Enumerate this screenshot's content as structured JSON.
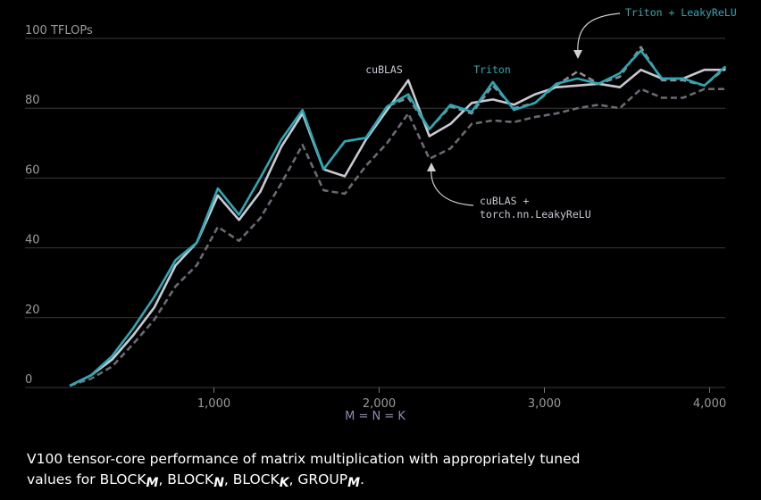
{
  "chart_data": {
    "type": "line",
    "xlabel": "M = N = K",
    "ylabel": "100 TFLOPs",
    "xlim": [
      0,
      4100
    ],
    "ylim": [
      0,
      100
    ],
    "x_ticks": [
      1000,
      2000,
      3000,
      4000
    ],
    "x_tick_labels": [
      "1,000",
      "2,000",
      "3,000",
      "4,000"
    ],
    "y_ticks": [
      0,
      20,
      40,
      60,
      80,
      100
    ],
    "y_tick_labels": [
      "0",
      "20",
      "40",
      "60",
      "80",
      "100 TFLOPs"
    ],
    "grid": true,
    "x": [
      128,
      256,
      384,
      512,
      640,
      768,
      896,
      1024,
      1152,
      1280,
      1408,
      1536,
      1664,
      1792,
      1920,
      2048,
      2176,
      2304,
      2432,
      2560,
      2688,
      2816,
      2944,
      3072,
      3200,
      3328,
      3456,
      3584,
      3712,
      3840,
      3968,
      4096
    ],
    "series": [
      {
        "name": "cuBLAS",
        "color": "#c8c8d2",
        "style": "solid",
        "values": [
          0.5,
          3.5,
          8,
          15,
          23,
          35,
          41.5,
          55,
          48,
          56,
          69,
          78.5,
          62.5,
          60.5,
          71,
          79.5,
          88,
          72,
          75.5,
          81.5,
          82.5,
          81,
          84,
          86,
          86.5,
          87,
          86,
          91,
          88.5,
          88.5,
          91,
          91
        ]
      },
      {
        "name": "Triton",
        "color": "#2aa8b4",
        "style": "solid",
        "values": [
          0.5,
          3.5,
          9,
          17,
          26,
          36.5,
          41.5,
          57,
          49.5,
          60,
          71,
          79.5,
          62.5,
          70.5,
          71.5,
          80.5,
          84,
          74,
          81,
          79,
          87.5,
          79.5,
          81.5,
          87,
          88.5,
          87,
          90,
          96.5,
          88.5,
          88.5,
          86.5,
          92
        ]
      },
      {
        "name": "Triton + LeakyReLU",
        "color": "#8a8a96",
        "style": "dashed",
        "values": [
          0.5,
          3.5,
          8,
          15,
          23,
          35,
          41.5,
          55,
          48,
          56,
          69,
          78.5,
          62.5,
          70.5,
          71.5,
          80.5,
          83,
          74,
          80.5,
          78.5,
          86.5,
          80,
          81.5,
          86.5,
          90.5,
          87,
          89,
          97.5,
          88,
          88,
          86.5,
          91.5
        ]
      },
      {
        "name": "cuBLAS + torch.nn.LeakyReLU",
        "color": "#6a6a74",
        "style": "dashed",
        "values": [
          0.5,
          2.5,
          6,
          12.5,
          19.5,
          29,
          35,
          46,
          42,
          48.5,
          58.5,
          69.5,
          56.5,
          55.5,
          63.5,
          70,
          78.5,
          65.5,
          68.5,
          75.5,
          76.5,
          76,
          77.5,
          78.5,
          80,
          81,
          80,
          85.5,
          83,
          83,
          85.5,
          85.5
        ]
      }
    ],
    "annotations": [
      {
        "text": "cuBLAS",
        "color": "#c8c8d2"
      },
      {
        "text": "Triton",
        "color": "#2aa8b4"
      },
      {
        "text": "Triton + LeakyReLU",
        "color": "#2aa8b4"
      },
      {
        "text_lines": [
          "cuBLAS +",
          "torch.nn.LeakyReLU"
        ],
        "color": "#c8c8d2"
      }
    ]
  },
  "caption": {
    "prefix": "V100 tensor-core performance of matrix multiplication with appropriately tuned values for ",
    "blocks": [
      {
        "word": "BLOCK",
        "sub": "M",
        "sep": ", "
      },
      {
        "word": "BLOCK",
        "sub": "N",
        "sep": ", "
      },
      {
        "word": "BLOCK",
        "sub": "K",
        "sep": ", "
      },
      {
        "word": "GROUP",
        "sub": "M",
        "sep": "."
      }
    ]
  }
}
